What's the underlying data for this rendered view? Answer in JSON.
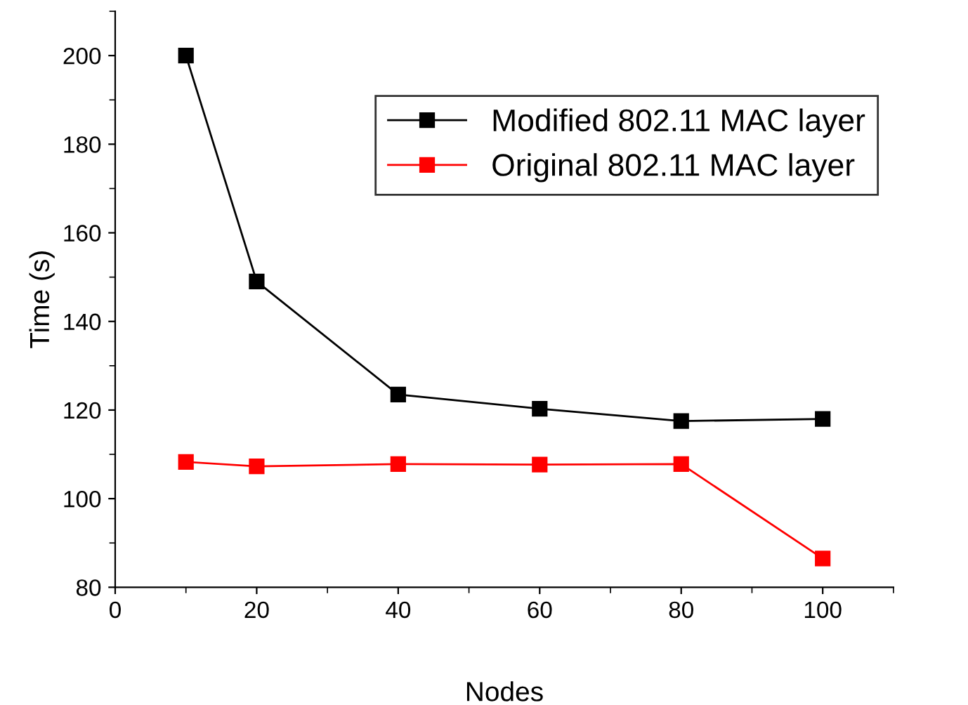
{
  "chart_data": {
    "type": "line",
    "xlabel": "Nodes",
    "ylabel": "Time (s)",
    "x": [
      10,
      20,
      40,
      60,
      80,
      100
    ],
    "series": [
      {
        "name": "Modified 802.11 MAC layer",
        "color": "#000000",
        "values": [
          200,
          149,
          123.5,
          120.3,
          117.5,
          118
        ]
      },
      {
        "name": "Original 802.11 MAC layer",
        "color": "#ff0000",
        "values": [
          108.3,
          107.3,
          107.8,
          107.7,
          107.8,
          86.5
        ]
      }
    ],
    "xlim": [
      0,
      110
    ],
    "xticks": [
      0,
      20,
      40,
      60,
      80,
      100
    ],
    "ylim": [
      80,
      210
    ],
    "yticks": [
      80,
      100,
      120,
      140,
      160,
      180,
      200
    ],
    "marker": "square",
    "line_style": "solid",
    "grid": false,
    "legend": "top right"
  }
}
